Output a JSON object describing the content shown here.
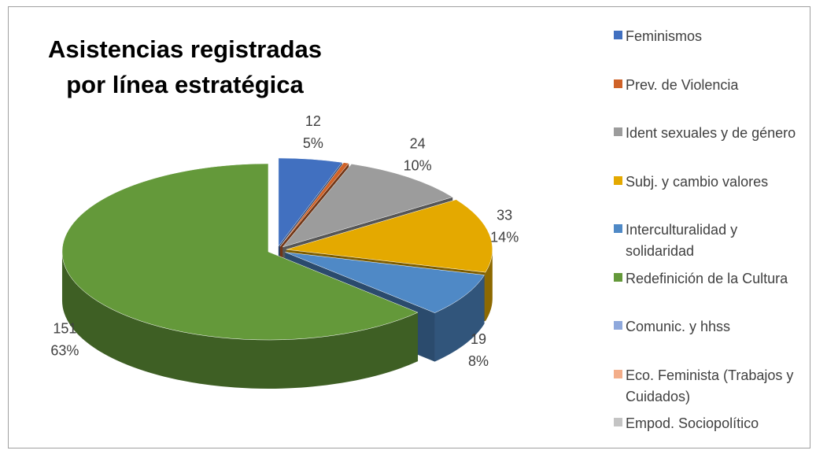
{
  "chart_data": {
    "type": "pie3d",
    "title": "Asistencias registradas por línea estratégica",
    "categories": [
      "Feminismos",
      "Prev. de Violencia",
      "Ident sexuales y de género",
      "Subj. y cambio valores",
      "Interculturalidad y solidaridad",
      "Redefinición de la Cultura",
      "Comunic. y hhss",
      "Eco. Feminista (Trabajos y Cuidados)",
      "Empod. Sociopolítico"
    ],
    "values": [
      12,
      1,
      24,
      33,
      19,
      151,
      0,
      0,
      0
    ],
    "percent_labels": [
      "5%",
      null,
      "10%",
      "14%",
      "8%",
      "63%",
      null,
      null,
      null
    ],
    "colors": [
      "#4170c0",
      "#cf6228",
      "#9c9c9c",
      "#e4a900",
      "#4f89c6",
      "#64993a",
      "#8ea8dc",
      "#f3ae8a",
      "#c4c4c4"
    ],
    "legend": "right"
  }
}
